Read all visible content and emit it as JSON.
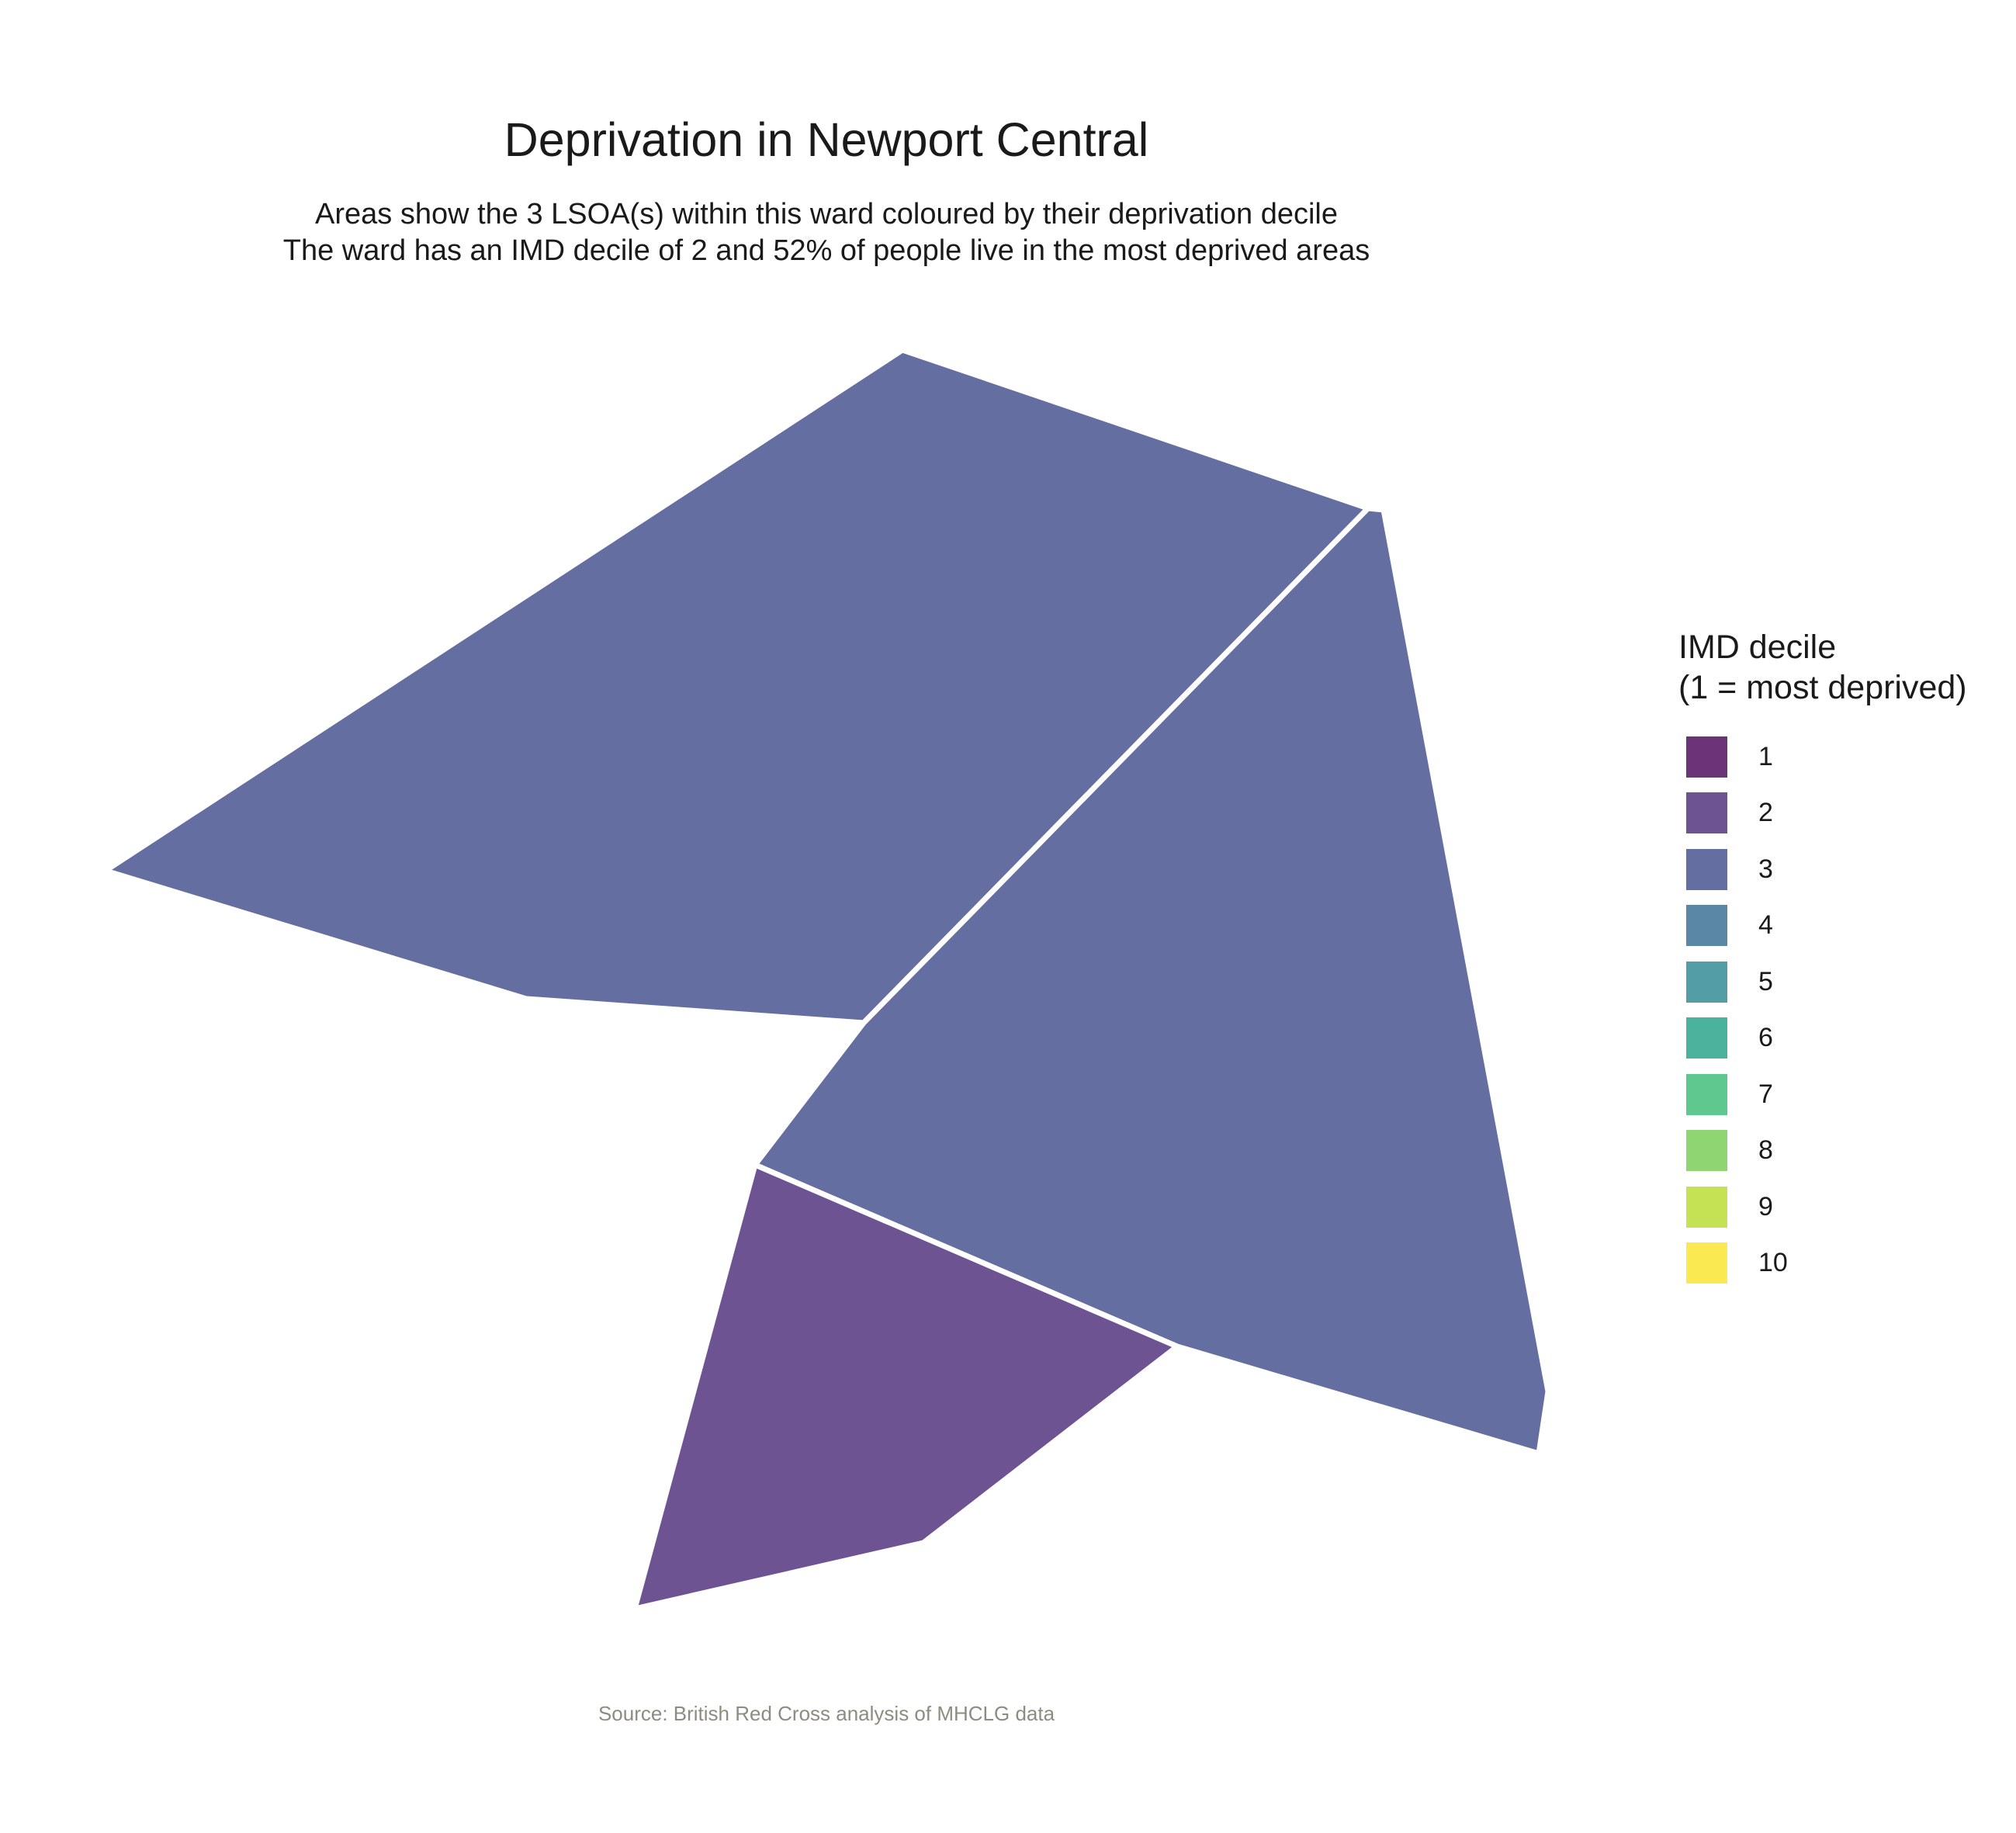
{
  "title": "Deprivation in Newport Central",
  "subtitle_line1": "Areas show the 3 LSOA(s) within this ward coloured by their deprivation decile",
  "subtitle_line2": "The ward has an IMD decile of 2 and 52% of people live in the most deprived areas",
  "caption": "Source: British Red Cross analysis of MHCLG data",
  "legend": {
    "title_line1": "IMD decile",
    "title_line2": "(1 = most deprived)",
    "items": [
      {
        "label": "1",
        "color": "#6b3478"
      },
      {
        "label": "2",
        "color": "#6e5393"
      },
      {
        "label": "3",
        "color": "#656ea0"
      },
      {
        "label": "4",
        "color": "#5a87a3"
      },
      {
        "label": "5",
        "color": "#529da6"
      },
      {
        "label": "6",
        "color": "#4bb39d"
      },
      {
        "label": "7",
        "color": "#5ec88e"
      },
      {
        "label": "8",
        "color": "#8fd673"
      },
      {
        "label": "9",
        "color": "#c5e154"
      },
      {
        "label": "10",
        "color": "#fbe952"
      }
    ]
  },
  "areas": [
    {
      "decile": 3,
      "color": "#656ea0"
    },
    {
      "decile": 3,
      "color": "#656ea0"
    },
    {
      "decile": 2,
      "color": "#6e5393"
    }
  ],
  "border_color": "#ffffff"
}
